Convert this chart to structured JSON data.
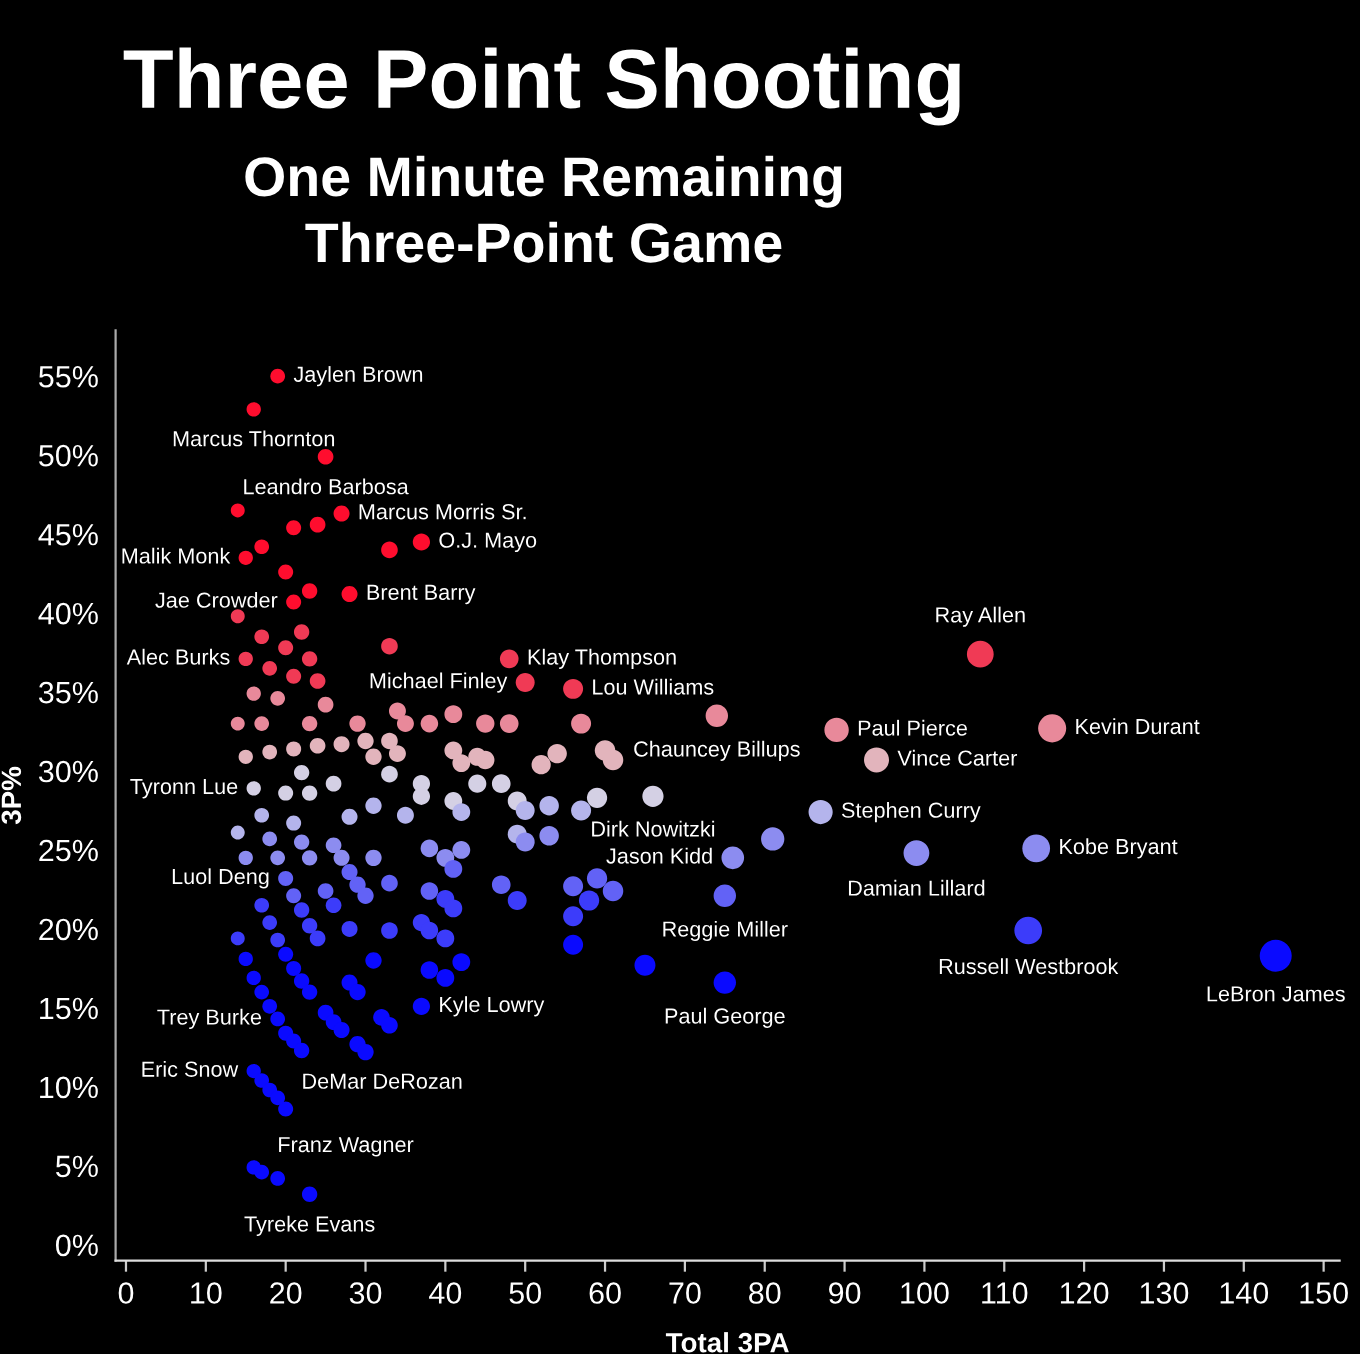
{
  "chart_data": {
    "type": "bubble",
    "title": "Three Point Shooting",
    "subtitle": "One Minute Remaining\nThree-Point Game",
    "xlabel": "Total 3PA",
    "ylabel": "3P%",
    "xlim": [
      -1.3,
      152
    ],
    "ylim": [
      -1,
      57.9
    ],
    "xticks": [
      0,
      10,
      20,
      30,
      40,
      50,
      60,
      70,
      80,
      90,
      100,
      110,
      120,
      130,
      140,
      150
    ],
    "yticks": [
      {
        "value": 0,
        "label": "0%"
      },
      {
        "value": 5,
        "label": "5%"
      },
      {
        "value": 10,
        "label": "10%"
      },
      {
        "value": 15,
        "label": "15%"
      },
      {
        "value": 20,
        "label": "20%"
      },
      {
        "value": 25,
        "label": "25%"
      },
      {
        "value": 30,
        "label": "30%"
      },
      {
        "value": 35,
        "label": "35%"
      },
      {
        "value": 40,
        "label": "40%"
      },
      {
        "value": 45,
        "label": "45%"
      },
      {
        "value": 50,
        "label": "50%"
      },
      {
        "value": 55,
        "label": "55%"
      }
    ],
    "marker": "circle",
    "series": [
      {
        "color": "#ff0d2e",
        "sizes": [
          0.21,
          0.2,
          0.24,
          0.25,
          0.29,
          0.25,
          0.2,
          0.22,
          0.19,
          0.22,
          0.24,
          0.21,
          0.22,
          0.27,
          0.23
        ],
        "x": [
          19,
          16,
          25,
          27,
          37,
          28,
          15,
          21,
          14,
          21,
          24,
          17,
          20,
          33,
          23
        ],
        "values": [
          55.0,
          52.9,
          49.9,
          46.3,
          44.5,
          41.2,
          43.5,
          40.7,
          46.5,
          45.4,
          45.6,
          44.2,
          42.6,
          44.0,
          41.4
        ]
      },
      {
        "color": "#f03a55",
        "sizes": [
          0.2,
          0.34,
          0.35,
          0.39,
          0.7,
          0.19,
          0.21,
          0.23,
          0.22,
          0.27,
          0.23,
          0.21,
          0.22,
          0.24
        ],
        "x": [
          15,
          48,
          50,
          56,
          107,
          14,
          17,
          22,
          20,
          33,
          23,
          18,
          21,
          24
        ],
        "values": [
          37.1,
          37.1,
          35.6,
          35.2,
          37.4,
          39.8,
          38.5,
          38.8,
          37.8,
          37.9,
          37.1,
          36.5,
          36.0,
          35.7
        ]
      },
      {
        "color": "#e8899a",
        "sizes": [
          0.49,
          0.58,
          0.77,
          0.2,
          0.21,
          0.24,
          0.19,
          0.21,
          0.23,
          0.28,
          0.28,
          0.3,
          0.31,
          0.26,
          0.33,
          0.34,
          0.39
        ],
        "x": [
          74,
          89,
          116,
          16,
          19,
          25,
          14,
          17,
          23,
          34,
          35,
          38,
          41,
          29,
          45,
          48,
          57
        ],
        "values": [
          33.5,
          32.6,
          32.7,
          34.9,
          34.6,
          34.2,
          33.0,
          33.0,
          33.0,
          33.8,
          33.0,
          33.0,
          33.6,
          33.0,
          33.0,
          33.0,
          33.0
        ]
      },
      {
        "color": "#e2b4bc",
        "sizes": [
          0.61,
          0.2,
          0.21,
          0.22,
          0.24,
          0.25,
          0.26,
          0.27,
          0.26,
          0.28,
          0.31,
          0.32,
          0.31,
          0.33,
          0.36,
          0.37,
          0.41,
          0.41
        ],
        "x": [
          94,
          15,
          18,
          21,
          24,
          27,
          30,
          33,
          31,
          34,
          41,
          44,
          42,
          45,
          52,
          54,
          60,
          61
        ],
        "values": [
          30.7,
          30.9,
          31.2,
          31.4,
          31.6,
          31.7,
          31.9,
          31.9,
          30.9,
          31.1,
          31.3,
          30.9,
          30.5,
          30.7,
          30.4,
          31.1,
          31.3,
          30.7
        ]
      },
      {
        "color": "#d4d0e4",
        "sizes": [
          0.44,
          0.2,
          0.23,
          0.24,
          0.22,
          0.23,
          0.27,
          0.29,
          0.34,
          0.29,
          0.32,
          0.31,
          0.35,
          0.4
        ],
        "x": [
          66,
          16,
          22,
          26,
          20,
          23,
          33,
          37,
          47,
          37,
          44,
          41,
          49,
          59
        ],
        "values": [
          28.4,
          28.9,
          29.9,
          29.2,
          28.6,
          28.6,
          29.8,
          29.2,
          29.2,
          28.4,
          29.2,
          28.1,
          28.1,
          28.3
        ]
      },
      {
        "color": "#b4b4ec",
        "sizes": [
          0.57,
          0.31,
          0.28,
          0.35,
          0.37,
          0.39,
          0.21,
          0.22,
          0.19,
          0.25,
          0.26,
          0.35
        ],
        "x": [
          87,
          42,
          35,
          50,
          53,
          57,
          17,
          21,
          14,
          28,
          31,
          49
        ],
        "values": [
          27.4,
          27.4,
          27.2,
          27.5,
          27.8,
          27.5,
          27.2,
          26.7,
          26.1,
          27.1,
          27.8,
          26.0
        ]
      },
      {
        "color": "#8c8cf0",
        "sizes": [
          0.5,
          0.65,
          0.75,
          0.35,
          0.37,
          0.53,
          0.3,
          0.31,
          0.31,
          0.21,
          0.23,
          0.24,
          0.2,
          0.21,
          0.23,
          0.25,
          0.26
        ],
        "x": [
          76,
          99,
          114,
          50,
          53,
          81,
          38,
          40,
          42,
          18,
          22,
          26,
          15,
          19,
          23,
          27,
          31
        ],
        "values": [
          24.5,
          24.8,
          25.1,
          25.5,
          25.9,
          25.7,
          25.1,
          24.5,
          25.0,
          25.7,
          25.5,
          25.3,
          24.5,
          24.5,
          24.5,
          24.5,
          24.5
        ]
      },
      {
        "color": "#6262f6",
        "sizes": [
          0.22,
          0.49,
          0.31,
          0.34,
          0.3,
          0.39,
          0.4,
          0.41,
          0.25,
          0.26,
          0.26,
          0.27,
          0.22,
          0.24
        ],
        "x": [
          20,
          75,
          41,
          47,
          38,
          56,
          59,
          61,
          28,
          29,
          30,
          33,
          21,
          25
        ],
        "values": [
          23.2,
          22.1,
          23.8,
          22.8,
          22.4,
          22.7,
          23.2,
          22.4,
          23.6,
          22.8,
          22.1,
          22.9,
          22.1,
          22.4
        ]
      },
      {
        "color": "#3c3cfa",
        "sizes": [
          0.75,
          0.35,
          0.31,
          0.31,
          0.4,
          0.39,
          0.29,
          0.3,
          0.31,
          0.24,
          0.21,
          0.23,
          0.21,
          0.23,
          0.24,
          0.19,
          0.25,
          0.27,
          0.21
        ],
        "x": [
          113,
          49,
          40,
          41,
          58,
          56,
          37,
          38,
          40,
          26,
          17,
          22,
          18,
          23,
          24,
          14,
          28,
          33,
          19
        ],
        "values": [
          19.9,
          21.8,
          21.9,
          21.3,
          21.8,
          20.8,
          20.4,
          19.9,
          19.4,
          21.5,
          21.5,
          21.2,
          20.4,
          20.2,
          19.4,
          19.4,
          20.0,
          19.9,
          19.3
        ]
      },
      {
        "color": "#0a0aff",
        "sizes": [
          1,
          0.49,
          0.29,
          0.21,
          0.2,
          0.22,
          0.21,
          0.23,
          0.39,
          0.43,
          0.31,
          0.3,
          0.31,
          0.2,
          0.22,
          0.26,
          0.2,
          0.22,
          0.23,
          0.23,
          0.21,
          0.25,
          0.26,
          0.21,
          0.24,
          0.24,
          0.25,
          0.27,
          0.27,
          0.22,
          0.22,
          0.23,
          0.26,
          0.26,
          0.21,
          0.21,
          0.21,
          0.2,
          0.21
        ],
        "x": [
          144,
          75,
          37,
          19,
          16,
          20,
          17,
          23,
          56,
          65,
          42,
          38,
          40,
          15,
          20,
          31,
          16,
          21,
          22,
          23,
          17,
          28,
          29,
          18,
          25,
          26,
          27,
          32,
          33,
          20,
          21,
          22,
          29,
          30,
          17,
          18,
          19,
          16,
          19
        ],
        "values": [
          18.3,
          16.6,
          15.1,
          14.3,
          11.0,
          8.6,
          4.6,
          3.2,
          19.0,
          17.7,
          17.9,
          17.4,
          16.9,
          18.1,
          18.4,
          18.0,
          16.9,
          17.5,
          16.7,
          16.0,
          16.0,
          16.6,
          16.0,
          15.1,
          14.7,
          14.1,
          13.6,
          14.4,
          13.9,
          13.4,
          12.9,
          12.3,
          12.7,
          12.2,
          10.4,
          9.8,
          9.3,
          4.9,
          4.2
        ]
      }
    ],
    "annotations": [
      {
        "text": "Jaylen Brown",
        "x": 19,
        "y": 55.0
      },
      {
        "text": "Marcus Thornton",
        "x": 16,
        "y": 52.9
      },
      {
        "text": "Leandro Barbosa",
        "x": 25,
        "y": 49.9
      },
      {
        "text": "Marcus Morris Sr.",
        "x": 27,
        "y": 46.3
      },
      {
        "text": "O.J. Mayo",
        "x": 37,
        "y": 44.5
      },
      {
        "text": "Brent Barry",
        "x": 28,
        "y": 41.2
      },
      {
        "text": "Malik Monk",
        "x": 15,
        "y": 43.5
      },
      {
        "text": "Jae Crowder",
        "x": 21,
        "y": 40.7
      },
      {
        "text": "Alec Burks",
        "x": 15,
        "y": 37.1
      },
      {
        "text": "Klay Thompson",
        "x": 48,
        "y": 37.1
      },
      {
        "text": "Michael Finley",
        "x": 50,
        "y": 35.6
      },
      {
        "text": "Lou Williams",
        "x": 56,
        "y": 35.2
      },
      {
        "text": "Chauncey Billups",
        "x": 74,
        "y": 33.5
      },
      {
        "text": "Ray Allen",
        "x": 107,
        "y": 37.4
      },
      {
        "text": "Paul Pierce",
        "x": 89,
        "y": 32.6
      },
      {
        "text": "Vince Carter",
        "x": 94,
        "y": 30.7
      },
      {
        "text": "Kevin Durant",
        "x": 116,
        "y": 32.7
      },
      {
        "text": "Stephen Curry",
        "x": 87,
        "y": 27.4
      },
      {
        "text": "Dirk Nowitzki",
        "x": 66,
        "y": 28.4
      },
      {
        "text": "Jason Kidd",
        "x": 76,
        "y": 24.5
      },
      {
        "text": "Damian Lillard",
        "x": 99,
        "y": 24.8
      },
      {
        "text": "Kobe Bryant",
        "x": 114,
        "y": 25.1
      },
      {
        "text": "Reggie Miller",
        "x": 75,
        "y": 22.1
      },
      {
        "text": "Russell Westbrook",
        "x": 113,
        "y": 19.9
      },
      {
        "text": "LeBron James",
        "x": 144,
        "y": 18.3
      },
      {
        "text": "Paul George",
        "x": 75,
        "y": 16.6
      },
      {
        "text": "Kyle Lowry",
        "x": 37,
        "y": 15.1
      },
      {
        "text": "Tyronn Lue",
        "x": 16,
        "y": 28.9
      },
      {
        "text": "Luol Deng",
        "x": 20,
        "y": 23.2
      },
      {
        "text": "Trey Burke",
        "x": 19,
        "y": 14.3
      },
      {
        "text": "Eric Snow",
        "x": 16,
        "y": 11.0
      },
      {
        "text": "DeMar DeRozan",
        "x": 20,
        "y": 8.6
      },
      {
        "text": "Franz Wagner",
        "x": 17,
        "y": 4.6
      },
      {
        "text": "Tyreke Evans",
        "x": 23,
        "y": 3.2
      }
    ]
  }
}
